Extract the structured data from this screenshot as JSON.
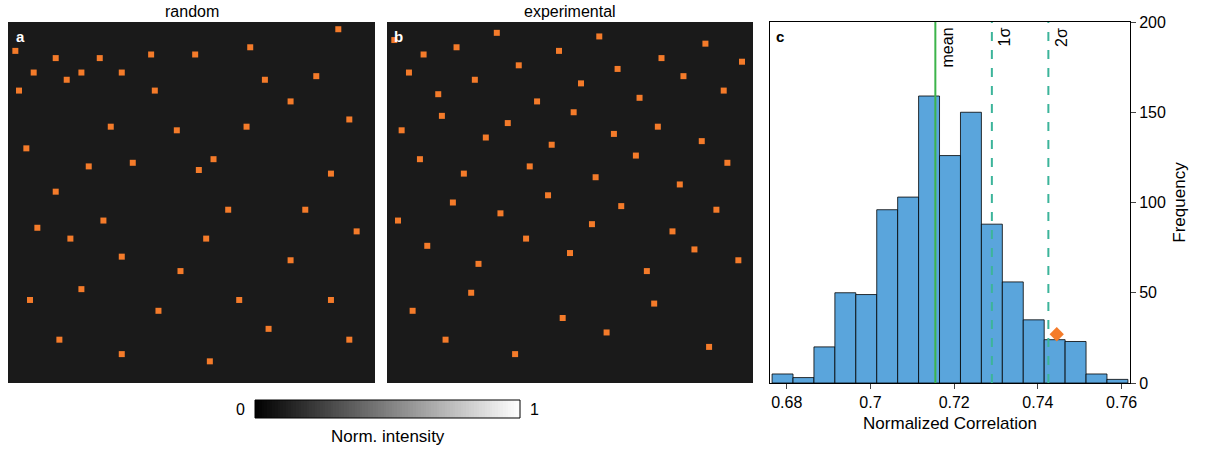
{
  "chart_data": [
    {
      "type": "scatter",
      "panel": "a",
      "title": "random",
      "x": [
        0.02,
        0.03,
        0.07,
        0.13,
        0.16,
        0.2,
        0.25,
        0.31,
        0.39,
        0.4,
        0.28,
        0.34,
        0.22,
        0.05,
        0.13,
        0.08,
        0.17,
        0.26,
        0.31,
        0.2,
        0.06,
        0.14,
        0.31,
        0.41,
        0.47,
        0.54,
        0.6,
        0.56,
        0.65,
        0.7,
        0.77,
        0.84,
        0.9,
        0.93,
        0.88,
        0.81,
        0.95,
        0.77,
        0.88,
        0.71,
        0.63,
        0.55,
        0.93,
        0.52,
        0.46,
        0.66,
        0.51
      ],
      "y": [
        0.92,
        0.81,
        0.86,
        0.9,
        0.84,
        0.86,
        0.9,
        0.86,
        0.91,
        0.81,
        0.71,
        0.61,
        0.6,
        0.65,
        0.53,
        0.43,
        0.4,
        0.45,
        0.35,
        0.26,
        0.23,
        0.12,
        0.08,
        0.2,
        0.31,
        0.4,
        0.48,
        0.62,
        0.71,
        0.84,
        0.78,
        0.85,
        0.98,
        0.73,
        0.58,
        0.48,
        0.42,
        0.34,
        0.23,
        0.15,
        0.23,
        0.06,
        0.12,
        0.59,
        0.7,
        0.93,
        0.91
      ],
      "color": "#f47b2a",
      "marker": "square",
      "xlim": [
        0,
        1
      ],
      "ylim": [
        0,
        1
      ],
      "tick_labels": false
    },
    {
      "type": "scatter",
      "panel": "b",
      "title": "experimental",
      "x": [
        0.02,
        0.06,
        0.1,
        0.14,
        0.19,
        0.24,
        0.3,
        0.36,
        0.41,
        0.47,
        0.53,
        0.58,
        0.63,
        0.69,
        0.75,
        0.81,
        0.87,
        0.92,
        0.97,
        0.04,
        0.09,
        0.15,
        0.21,
        0.27,
        0.33,
        0.39,
        0.45,
        0.51,
        0.57,
        0.62,
        0.68,
        0.74,
        0.8,
        0.86,
        0.93,
        0.03,
        0.11,
        0.18,
        0.25,
        0.31,
        0.38,
        0.44,
        0.5,
        0.56,
        0.64,
        0.71,
        0.78,
        0.84,
        0.9,
        0.96,
        0.07,
        0.16,
        0.23,
        0.35,
        0.48,
        0.6,
        0.73,
        0.88
      ],
      "y": [
        0.95,
        0.86,
        0.91,
        0.8,
        0.93,
        0.84,
        0.97,
        0.88,
        0.78,
        0.92,
        0.83,
        0.96,
        0.87,
        0.79,
        0.9,
        0.85,
        0.94,
        0.81,
        0.89,
        0.7,
        0.62,
        0.74,
        0.58,
        0.68,
        0.72,
        0.6,
        0.66,
        0.75,
        0.57,
        0.69,
        0.63,
        0.71,
        0.55,
        0.67,
        0.61,
        0.45,
        0.38,
        0.5,
        0.33,
        0.47,
        0.4,
        0.52,
        0.36,
        0.44,
        0.49,
        0.31,
        0.42,
        0.37,
        0.48,
        0.34,
        0.2,
        0.12,
        0.25,
        0.08,
        0.18,
        0.14,
        0.22,
        0.1
      ],
      "color": "#f47b2a",
      "marker": "square",
      "xlim": [
        0,
        1
      ],
      "ylim": [
        0,
        1
      ],
      "tick_labels": false
    },
    {
      "type": "histogram",
      "panel": "c",
      "bins": [
        0.6765,
        0.6815,
        0.6865,
        0.6915,
        0.6965,
        0.7015,
        0.7065,
        0.7115,
        0.7165,
        0.7215,
        0.7265,
        0.7315,
        0.7365,
        0.7415,
        0.7465,
        0.7515,
        0.7565,
        0.7615
      ],
      "counts": [
        5,
        3,
        20,
        50,
        49,
        96,
        103,
        159,
        126,
        150,
        88,
        56,
        35,
        24,
        23,
        5,
        2
      ],
      "color": "#5aa5dc",
      "xlim": [
        0.676,
        0.762
      ],
      "xticks": [
        0.68,
        0.7,
        0.72,
        0.74,
        0.76
      ],
      "ylim": [
        0,
        200
      ],
      "yticks": [
        0,
        50,
        100,
        150,
        200
      ],
      "x_label": "Normalized Correlation",
      "y_label": "Frequency",
      "lines": [
        {
          "label": "mean",
          "value": 0.7155,
          "color": "#3cb44b",
          "line_style": "solid"
        },
        {
          "label": "1σ",
          "value": 0.729,
          "color": "#3cb49a",
          "line_style": "dashed"
        },
        {
          "label": "2σ",
          "value": 0.7425,
          "color": "#3cb49a",
          "line_style": "dashed"
        }
      ],
      "point": {
        "x": 0.7445,
        "y": 27,
        "color": "#f47b2a",
        "marker": "diamond"
      }
    }
  ],
  "colorbar": {
    "label": "Norm. intensity",
    "range": [
      0,
      1
    ],
    "ticks": [
      0,
      1
    ]
  }
}
